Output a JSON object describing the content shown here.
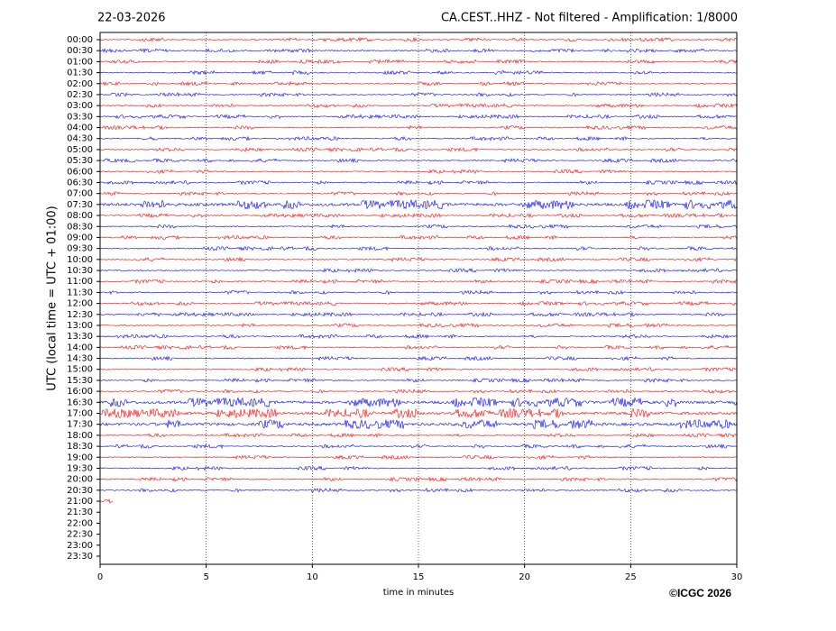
{
  "chart_data": {
    "type": "helicorder",
    "title_left": "22-03-2026",
    "title_right": "CA.CEST..HHZ - Not filtered - Amplification: 1/8000",
    "ylabel": "UTC (local time = UTC + 01:00)",
    "xlabel": "time in minutes",
    "credit": "©ICGC 2026",
    "xlim": [
      0,
      30
    ],
    "xticks": [
      0,
      5,
      10,
      15,
      20,
      25,
      30
    ],
    "grid": true,
    "colors": [
      "#ff0000",
      "#0000ff"
    ],
    "categories": [
      "00:00",
      "00:30",
      "01:00",
      "01:30",
      "02:00",
      "02:30",
      "03:00",
      "03:30",
      "04:00",
      "04:30",
      "05:00",
      "05:30",
      "06:00",
      "06:30",
      "07:00",
      "07:30",
      "08:00",
      "08:30",
      "09:00",
      "09:30",
      "10:00",
      "10:30",
      "11:00",
      "11:30",
      "12:00",
      "12:30",
      "13:00",
      "13:30",
      "14:00",
      "14:30",
      "15:00",
      "15:30",
      "16:00",
      "16:30",
      "17:00",
      "17:30",
      "18:00",
      "18:30",
      "19:00",
      "19:30",
      "20:00",
      "20:30",
      "21:00",
      "21:30",
      "22:00",
      "22:30",
      "23:00",
      "23:30"
    ],
    "trace_x": [
      [
        0,
        30
      ],
      [
        0,
        30
      ],
      [
        0,
        30
      ],
      [
        0,
        30
      ],
      [
        0,
        30
      ],
      [
        0,
        30
      ],
      [
        0,
        30
      ],
      [
        0,
        30
      ],
      [
        0,
        30
      ],
      [
        0,
        30
      ],
      [
        0,
        30
      ],
      [
        0,
        30
      ],
      [
        0,
        30
      ],
      [
        0,
        30
      ],
      [
        0,
        30
      ],
      [
        0,
        30
      ],
      [
        0,
        30
      ],
      [
        0,
        30
      ],
      [
        0,
        30
      ],
      [
        0,
        30
      ],
      [
        0,
        30
      ],
      [
        0,
        30
      ],
      [
        0,
        30
      ],
      [
        0,
        30
      ],
      [
        0,
        30
      ],
      [
        0,
        30
      ],
      [
        0,
        30
      ],
      [
        0,
        30
      ],
      [
        0,
        30
      ],
      [
        0,
        30
      ],
      [
        0,
        30
      ],
      [
        0,
        30
      ],
      [
        0,
        30
      ],
      [
        0,
        30
      ],
      [
        0,
        30
      ],
      [
        0,
        30
      ],
      [
        0,
        30
      ],
      [
        0,
        30
      ],
      [
        0,
        30
      ],
      [
        0,
        30
      ],
      [
        0,
        30
      ],
      [
        0,
        30
      ],
      [
        0,
        0.6
      ],
      null,
      null,
      null,
      null,
      null
    ]
  }
}
